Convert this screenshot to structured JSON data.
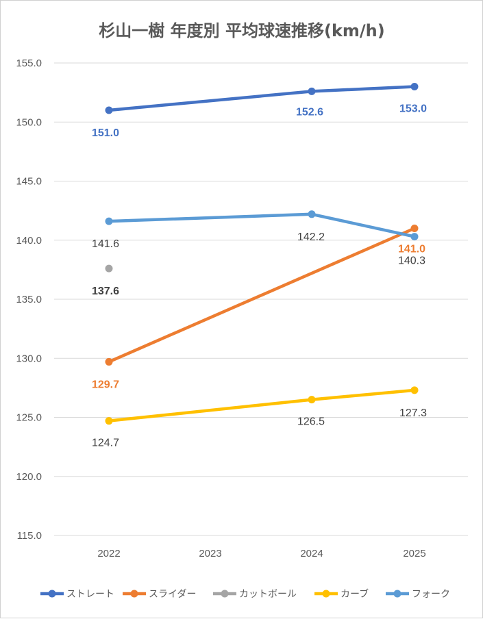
{
  "chart_data": {
    "type": "line",
    "title": "杉山一樹 年度別 平均球速推移(km/h)",
    "categories": [
      "2022",
      "2023",
      "2024",
      "2025"
    ],
    "ylim": [
      115.0,
      155.0
    ],
    "yticks": [
      "155.0",
      "150.0",
      "145.0",
      "140.0",
      "135.0",
      "130.0",
      "125.0",
      "120.0",
      "115.0"
    ],
    "grid": true,
    "legend": "bottom",
    "series": [
      {
        "name": "ストレート",
        "color": "#4472C4",
        "bold_labels": true,
        "values": [
          151.0,
          null,
          152.6,
          153.0
        ],
        "labels": [
          "151.0",
          null,
          "152.6",
          "153.0"
        ]
      },
      {
        "name": "スライダー",
        "color": "#ED7D31",
        "bold_labels": true,
        "values": [
          129.7,
          null,
          null,
          141.0
        ],
        "labels": [
          "129.7",
          null,
          null,
          "141.0"
        ]
      },
      {
        "name": "カットボール",
        "color": "#A5A5A5",
        "bold_labels": true,
        "values": [
          137.6,
          null,
          null,
          null
        ],
        "labels": [
          "137.6",
          null,
          null,
          null
        ]
      },
      {
        "name": "カーブ",
        "color": "#FFC000",
        "bold_labels": false,
        "values": [
          124.7,
          null,
          126.5,
          127.3
        ],
        "labels": [
          "124.7",
          null,
          "126.5",
          "127.3"
        ]
      },
      {
        "name": "フォーク",
        "color": "#5B9BD5",
        "bold_labels": false,
        "values": [
          141.6,
          null,
          142.2,
          140.3
        ],
        "labels": [
          "141.6",
          null,
          "142.2",
          "140.3"
        ]
      }
    ]
  }
}
